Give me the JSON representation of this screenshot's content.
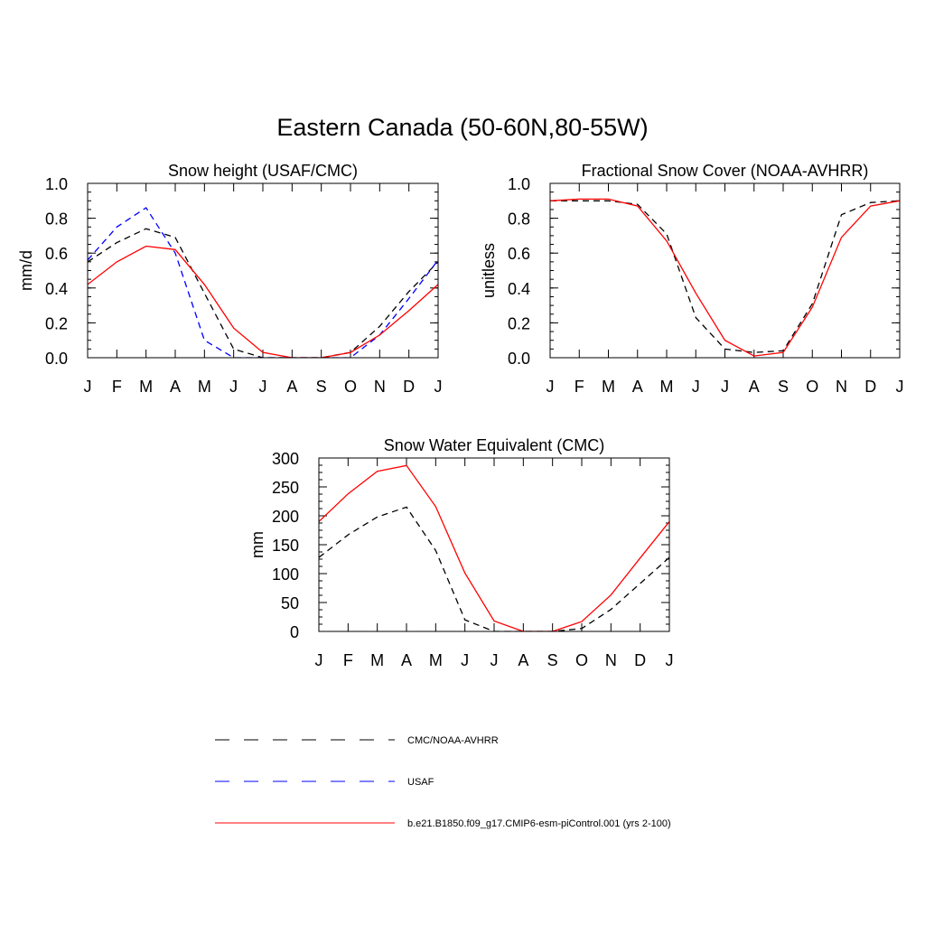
{
  "figure": {
    "title": "Eastern Canada (50-60N,80-55W)"
  },
  "colors": {
    "obs": "#000000",
    "usaf": "#0000ff",
    "model": "#ff0000"
  },
  "legend": {
    "items": [
      {
        "label": "CMC/NOAA-AVHRR",
        "style": "dashed",
        "color": "#000000"
      },
      {
        "label": "USAF",
        "style": "dashed",
        "color": "#0000ff"
      },
      {
        "label": "b.e21.B1850.f09_g17.CMIP6-esm-piControl.001 (yrs 2-100)",
        "style": "solid",
        "color": "#ff0000"
      }
    ]
  },
  "chart_data": [
    {
      "type": "line",
      "title": "Snow height (USAF/CMC)",
      "xlabel": "",
      "ylabel": "mm/d",
      "categories": [
        "J",
        "F",
        "M",
        "A",
        "M",
        "J",
        "J",
        "A",
        "S",
        "O",
        "N",
        "D",
        "J"
      ],
      "ylim": [
        0,
        1.0
      ],
      "yticks": [
        0.0,
        0.2,
        0.4,
        0.6,
        0.8,
        1.0
      ],
      "ytick_labels": [
        "0.0",
        "0.2",
        "0.4",
        "0.6",
        "0.8",
        "1.0"
      ],
      "series": [
        {
          "name": "CMC/NOAA-AVHRR",
          "style": "dashed",
          "color": "#000000",
          "values": [
            0.55,
            0.66,
            0.74,
            0.69,
            0.37,
            0.05,
            0.0,
            0.0,
            0.0,
            0.03,
            0.18,
            0.38,
            0.55
          ]
        },
        {
          "name": "USAF",
          "style": "dashed",
          "color": "#0000ff",
          "values": [
            0.56,
            0.75,
            0.86,
            0.6,
            0.1,
            0.0,
            0.0,
            0.0,
            0.0,
            0.0,
            0.13,
            0.34,
            0.56
          ]
        },
        {
          "name": "b.e21.B1850.f09_g17.CMIP6-esm-piControl.001 (yrs 2-100)",
          "style": "solid",
          "color": "#ff0000",
          "values": [
            0.42,
            0.55,
            0.64,
            0.62,
            0.42,
            0.17,
            0.03,
            0.0,
            0.0,
            0.03,
            0.13,
            0.27,
            0.42
          ]
        }
      ]
    },
    {
      "type": "line",
      "title": "Fractional Snow Cover (NOAA-AVHRR)",
      "xlabel": "",
      "ylabel": "unitless",
      "categories": [
        "J",
        "F",
        "M",
        "A",
        "M",
        "J",
        "J",
        "A",
        "S",
        "O",
        "N",
        "D",
        "J"
      ],
      "ylim": [
        0,
        1.0
      ],
      "yticks": [
        0.0,
        0.2,
        0.4,
        0.6,
        0.8,
        1.0
      ],
      "ytick_labels": [
        "0.0",
        "0.2",
        "0.4",
        "0.6",
        "0.8",
        "1.0"
      ],
      "series": [
        {
          "name": "CMC/NOAA-AVHRR",
          "style": "dashed",
          "color": "#000000",
          "values": [
            0.9,
            0.9,
            0.9,
            0.88,
            0.71,
            0.23,
            0.05,
            0.03,
            0.04,
            0.31,
            0.82,
            0.89,
            0.9
          ]
        },
        {
          "name": "b.e21.B1850.f09_g17.CMIP6-esm-piControl.001 (yrs 2-100)",
          "style": "solid",
          "color": "#ff0000",
          "values": [
            0.9,
            0.91,
            0.91,
            0.87,
            0.67,
            0.37,
            0.1,
            0.01,
            0.03,
            0.29,
            0.69,
            0.87,
            0.9
          ]
        }
      ]
    },
    {
      "type": "line",
      "title": "Snow Water Equivalent (CMC)",
      "xlabel": "",
      "ylabel": "mm",
      "categories": [
        "J",
        "F",
        "M",
        "A",
        "M",
        "J",
        "J",
        "A",
        "S",
        "O",
        "N",
        "D",
        "J"
      ],
      "ylim": [
        0,
        300
      ],
      "yticks": [
        0,
        50,
        100,
        150,
        200,
        250,
        300
      ],
      "ytick_labels": [
        "0",
        "50",
        "100",
        "150",
        "200",
        "250",
        "300"
      ],
      "series": [
        {
          "name": "CMC/NOAA-AVHRR",
          "style": "dashed",
          "color": "#000000",
          "values": [
            128,
            167,
            198,
            215,
            140,
            20,
            0,
            0,
            0,
            5,
            38,
            83,
            128
          ]
        },
        {
          "name": "b.e21.B1850.f09_g17.CMIP6-esm-piControl.001 (yrs 2-100)",
          "style": "solid",
          "color": "#ff0000",
          "values": [
            190,
            238,
            277,
            287,
            216,
            101,
            18,
            0,
            0,
            17,
            63,
            127,
            190
          ]
        }
      ]
    }
  ]
}
